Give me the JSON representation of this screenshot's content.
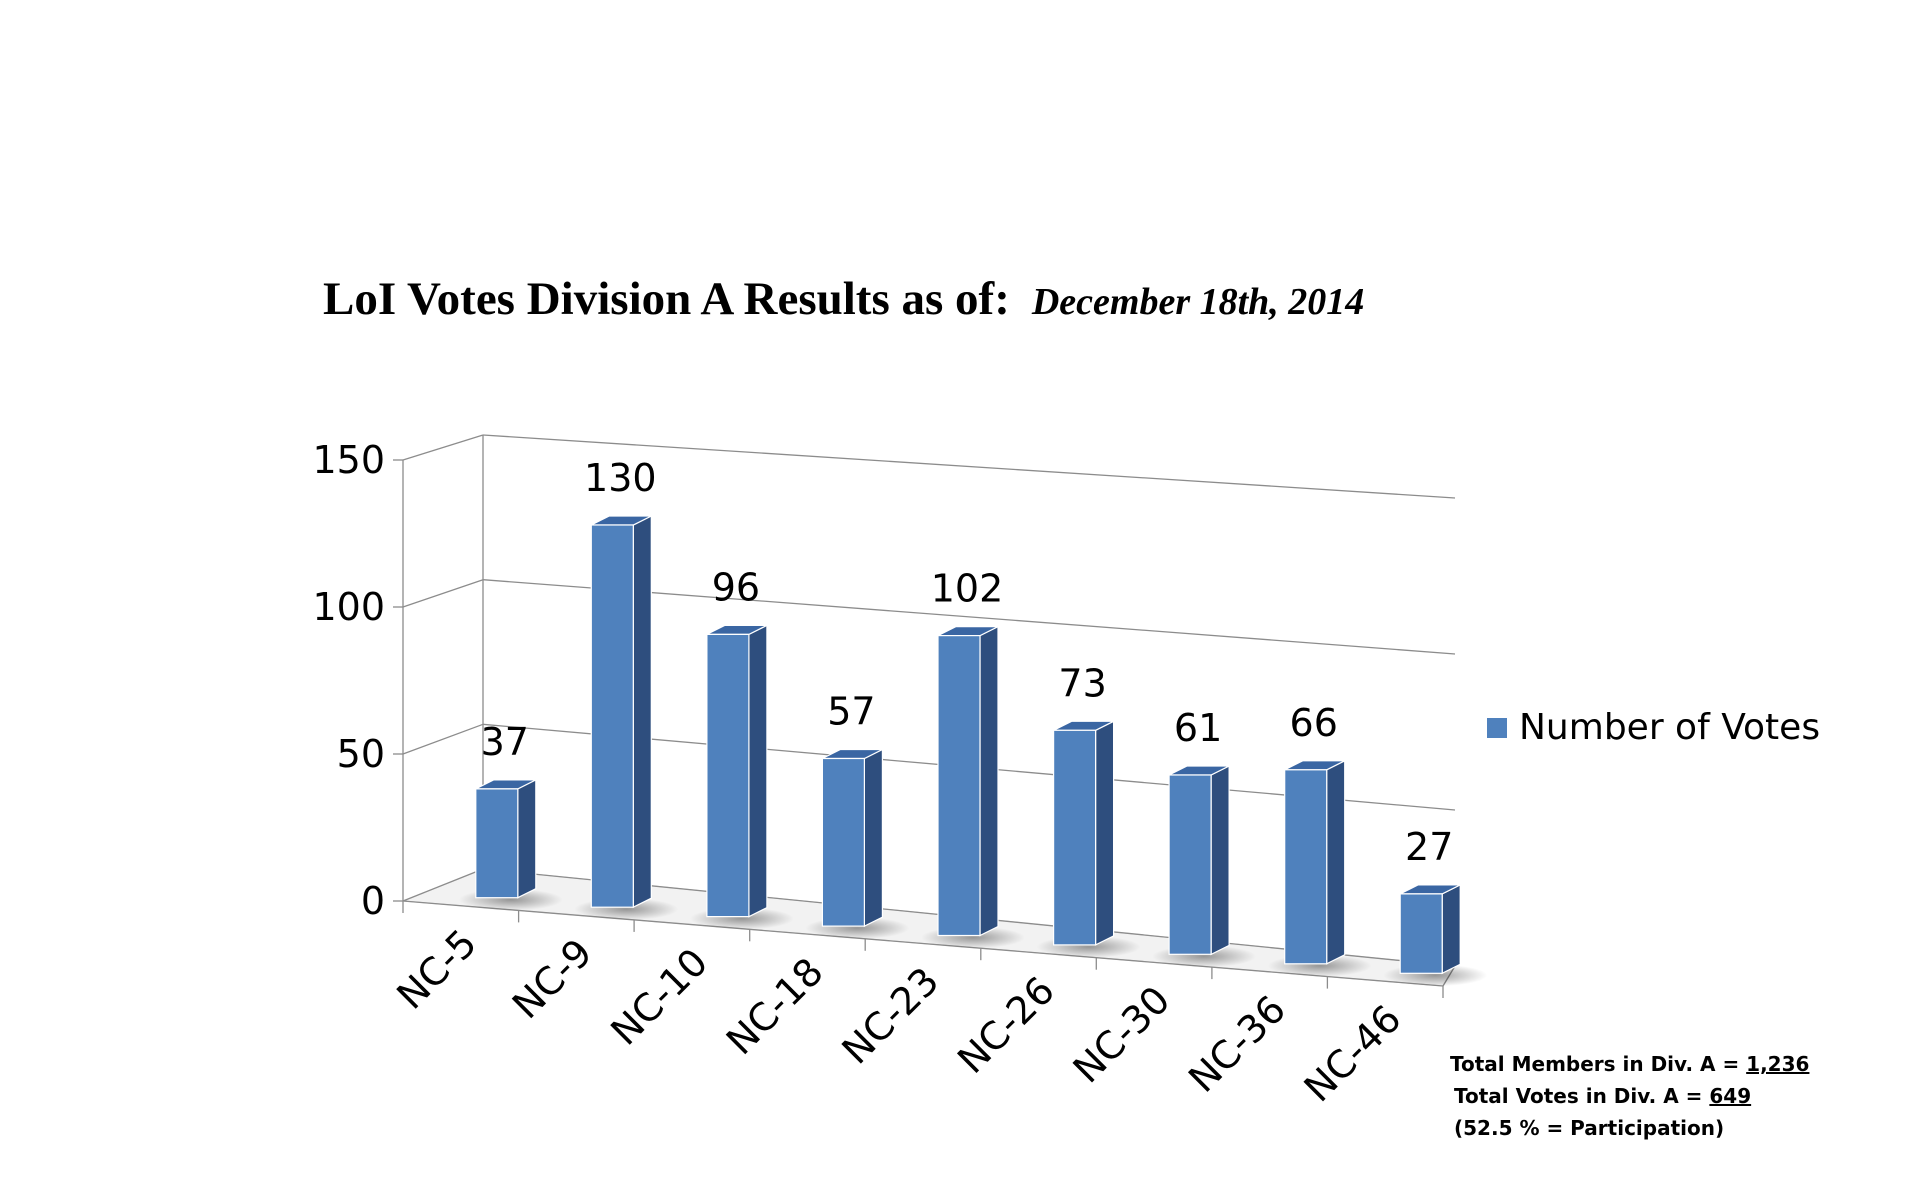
{
  "chart_data": {
    "type": "bar",
    "title": "LoI Votes Division A Results as of:",
    "subtitle": "December 18th, 2014",
    "categories": [
      "NC-5",
      "NC-9",
      "NC-10",
      "NC-18",
      "NC-23",
      "NC-26",
      "NC-30",
      "NC-36",
      "NC-46"
    ],
    "series": [
      {
        "name": "Number of Votes",
        "values": [
          37,
          130,
          96,
          57,
          102,
          73,
          61,
          66,
          27
        ]
      }
    ],
    "data_labels": [
      "37",
      "130",
      "96",
      "57",
      "102",
      "73",
      "61",
      "66",
      "27"
    ],
    "yticks": [
      0,
      50,
      100,
      150
    ],
    "ylim": [
      0,
      150
    ],
    "grid": true,
    "legend_position": "right",
    "style": "3d-column",
    "colors": {
      "bar_front": "#4f81bd",
      "bar_side": "#2e4e7e",
      "bar_top": "#3a66a3"
    }
  },
  "legend": {
    "label": "Number of Votes"
  },
  "totals": {
    "members_label": "Total Members in Div. A = ",
    "members_value": "1,236",
    "votes_label": "Total Votes in Div. A = ",
    "votes_value": "649",
    "participation": "(52.5 % = Participation)"
  }
}
